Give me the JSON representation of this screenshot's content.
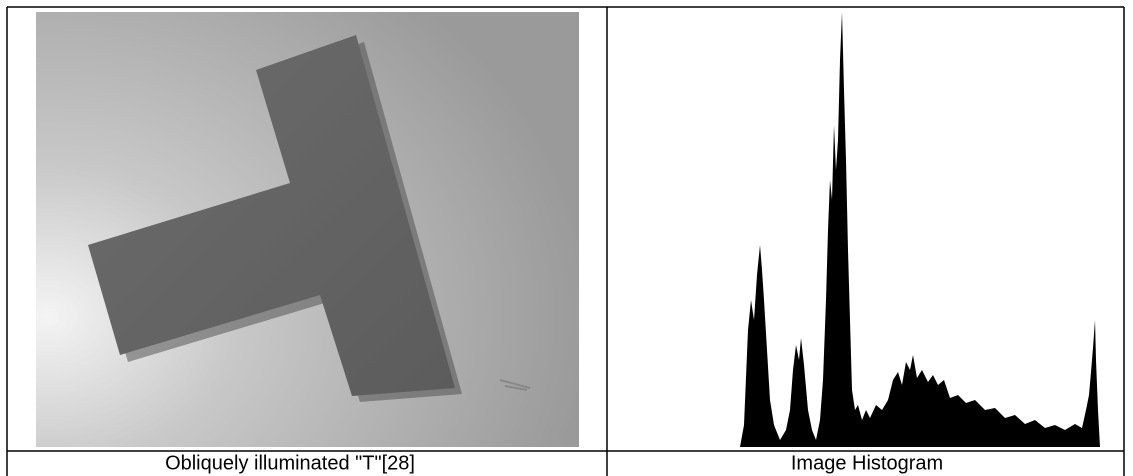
{
  "figure": {
    "captions": [
      "Obliquely illuminated \"T\"[28]",
      "Image Histogram"
    ]
  }
}
